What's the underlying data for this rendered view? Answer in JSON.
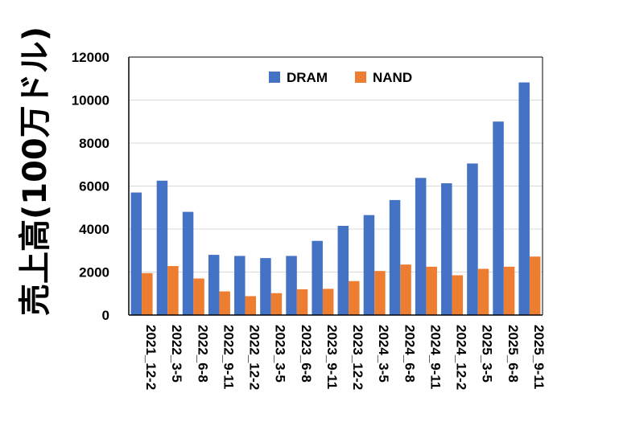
{
  "chart_data": {
    "type": "bar",
    "title": "",
    "xlabel": "",
    "ylabel": "売上高(100万ドル)",
    "ylim": [
      0,
      12000
    ],
    "yticks": [
      0,
      2000,
      4000,
      6000,
      8000,
      10000,
      12000
    ],
    "grid": true,
    "legend_position": "top",
    "categories": [
      "2021_12-2",
      "2022_3-5",
      "2022_6-8",
      "2022_9-11",
      "2022_12-2",
      "2023_3-5",
      "2023_6-8",
      "2023_9-11",
      "2023_12-2",
      "2024_3-5",
      "2024_6-8",
      "2024_9-11",
      "2024_12-2",
      "2025_3-5",
      "2025_6-8",
      "2025_9-11"
    ],
    "series": [
      {
        "name": "DRAM",
        "color": "#4472C4",
        "values": [
          5700,
          6250,
          4800,
          2800,
          2750,
          2650,
          2750,
          3450,
          4150,
          4650,
          5350,
          6380,
          6130,
          7050,
          9000,
          10820
        ]
      },
      {
        "name": "NAND",
        "color": "#ED7D31",
        "values": [
          1950,
          2280,
          1700,
          1100,
          880,
          1020,
          1200,
          1220,
          1580,
          2050,
          2350,
          2250,
          1850,
          2150,
          2250,
          2720
        ]
      }
    ]
  }
}
